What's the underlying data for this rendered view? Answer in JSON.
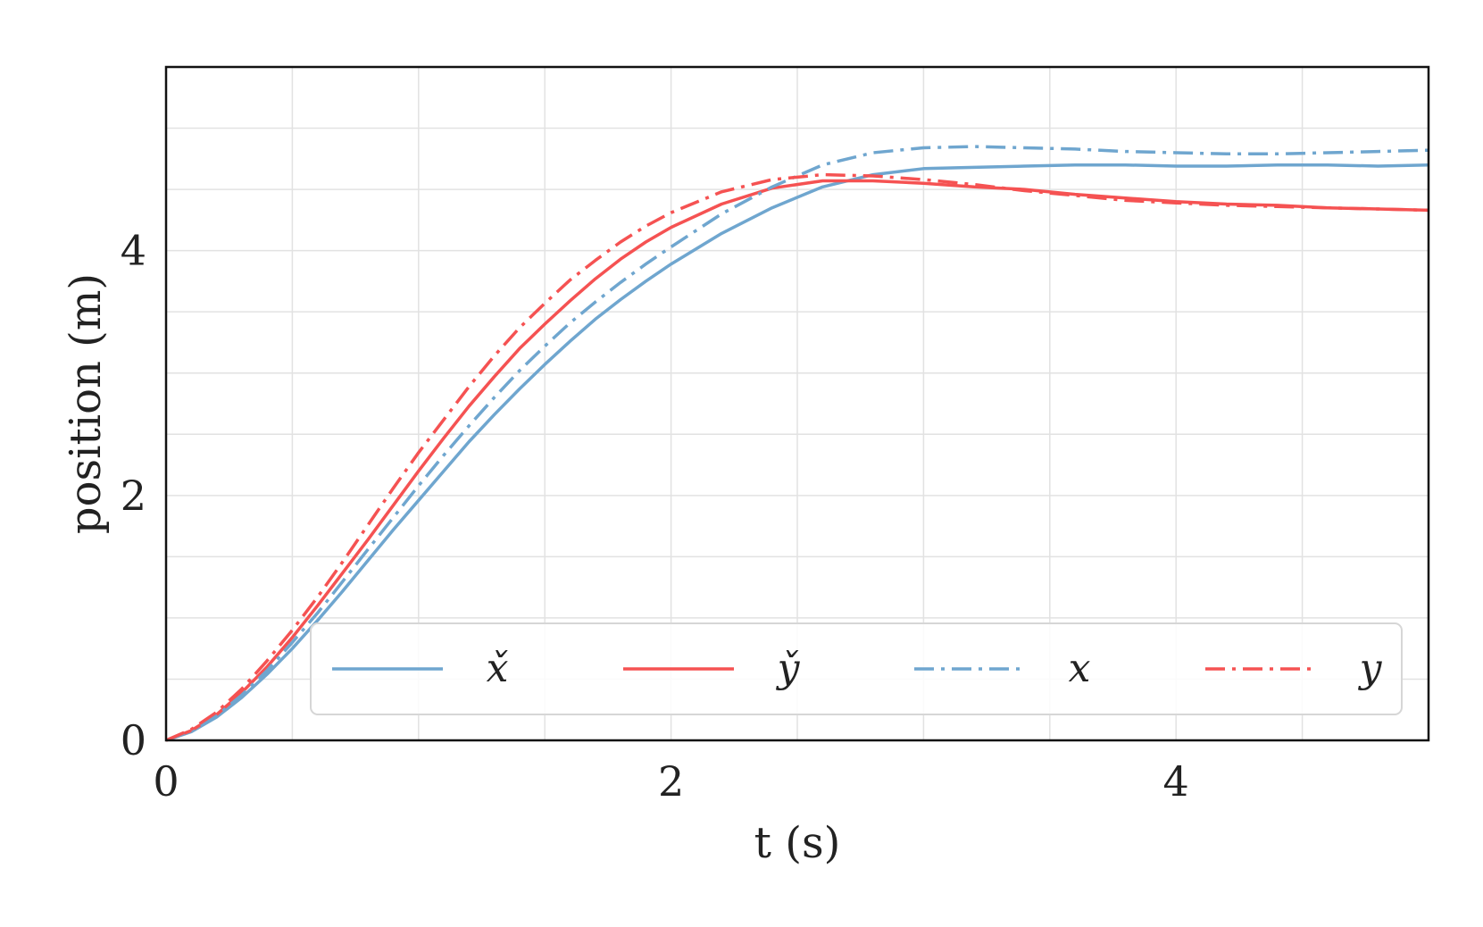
{
  "chart_data": {
    "type": "line",
    "xlabel": "t (s)",
    "ylabel": "position (m)",
    "xlim": [
      0,
      5
    ],
    "ylim": [
      0,
      5.5
    ],
    "xticks": [
      0,
      2,
      4
    ],
    "yticks": [
      0,
      2,
      4
    ],
    "x_minor_grid": [
      0.5,
      1,
      1.5,
      2,
      2.5,
      3,
      3.5,
      4,
      4.5
    ],
    "y_minor_grid": [
      0.5,
      1,
      1.5,
      2,
      2.5,
      3,
      3.5,
      4,
      4.5,
      5
    ],
    "grid": true,
    "legend": {
      "placement": "bottom-right",
      "columns": 4
    },
    "colors": {
      "blue": "#6fa6cf",
      "red": "#f55252"
    },
    "series": [
      {
        "name": "x̌",
        "color": "#6fa6cf",
        "dash": "solid",
        "x": [
          0,
          0.1,
          0.2,
          0.3,
          0.4,
          0.5,
          0.6,
          0.7,
          0.8,
          0.9,
          1.0,
          1.1,
          1.2,
          1.3,
          1.4,
          1.5,
          1.6,
          1.7,
          1.8,
          1.9,
          2.0,
          2.2,
          2.4,
          2.6,
          2.8,
          3.0,
          3.2,
          3.4,
          3.6,
          3.8,
          4.0,
          4.2,
          4.4,
          4.6,
          4.8,
          5.0
        ],
        "y": [
          0,
          0.07,
          0.19,
          0.35,
          0.54,
          0.75,
          0.98,
          1.22,
          1.47,
          1.72,
          1.96,
          2.2,
          2.44,
          2.66,
          2.87,
          3.07,
          3.26,
          3.44,
          3.6,
          3.75,
          3.89,
          4.14,
          4.35,
          4.52,
          4.62,
          4.67,
          4.68,
          4.69,
          4.7,
          4.7,
          4.69,
          4.69,
          4.7,
          4.7,
          4.69,
          4.7
        ]
      },
      {
        "name": "y̌",
        "color": "#f55252",
        "dash": "solid",
        "x": [
          0,
          0.1,
          0.2,
          0.3,
          0.4,
          0.5,
          0.6,
          0.7,
          0.8,
          0.9,
          1.0,
          1.1,
          1.2,
          1.3,
          1.4,
          1.5,
          1.6,
          1.7,
          1.8,
          1.9,
          2.0,
          2.2,
          2.4,
          2.6,
          2.8,
          3.0,
          3.2,
          3.4,
          3.6,
          3.8,
          4.0,
          4.2,
          4.4,
          4.6,
          4.8,
          5.0
        ],
        "y": [
          0,
          0.08,
          0.21,
          0.39,
          0.6,
          0.84,
          1.1,
          1.37,
          1.64,
          1.92,
          2.2,
          2.47,
          2.73,
          2.97,
          3.2,
          3.4,
          3.59,
          3.77,
          3.93,
          4.07,
          4.19,
          4.38,
          4.51,
          4.57,
          4.57,
          4.55,
          4.52,
          4.5,
          4.46,
          4.43,
          4.4,
          4.38,
          4.37,
          4.35,
          4.34,
          4.33
        ]
      },
      {
        "name": "x",
        "color": "#6fa6cf",
        "dash": "dashdot",
        "x": [
          0,
          0.1,
          0.2,
          0.3,
          0.4,
          0.5,
          0.6,
          0.7,
          0.8,
          0.9,
          1.0,
          1.1,
          1.2,
          1.3,
          1.4,
          1.5,
          1.6,
          1.7,
          1.8,
          1.9,
          2.0,
          2.2,
          2.4,
          2.6,
          2.8,
          3.0,
          3.2,
          3.4,
          3.6,
          3.8,
          4.0,
          4.2,
          4.4,
          4.6,
          4.8,
          5.0
        ],
        "y": [
          0,
          0.08,
          0.2,
          0.37,
          0.57,
          0.8,
          1.04,
          1.3,
          1.56,
          1.82,
          2.08,
          2.33,
          2.57,
          2.8,
          3.02,
          3.22,
          3.41,
          3.58,
          3.74,
          3.89,
          4.03,
          4.3,
          4.52,
          4.7,
          4.8,
          4.84,
          4.85,
          4.84,
          4.83,
          4.81,
          4.8,
          4.79,
          4.79,
          4.8,
          4.81,
          4.82
        ]
      },
      {
        "name": "y",
        "color": "#f55252",
        "dash": "dashdot",
        "x": [
          0,
          0.1,
          0.2,
          0.3,
          0.4,
          0.5,
          0.6,
          0.7,
          0.8,
          0.9,
          1.0,
          1.1,
          1.2,
          1.3,
          1.4,
          1.5,
          1.6,
          1.7,
          1.8,
          1.9,
          2.0,
          2.2,
          2.4,
          2.6,
          2.8,
          3.0,
          3.2,
          3.4,
          3.6,
          3.8,
          4.0,
          4.2,
          4.4,
          4.6,
          4.8,
          5.0
        ],
        "y": [
          0,
          0.09,
          0.23,
          0.42,
          0.65,
          0.9,
          1.17,
          1.46,
          1.76,
          2.06,
          2.35,
          2.62,
          2.89,
          3.14,
          3.37,
          3.57,
          3.76,
          3.92,
          4.07,
          4.2,
          4.31,
          4.48,
          4.58,
          4.62,
          4.61,
          4.58,
          4.54,
          4.49,
          4.45,
          4.41,
          4.39,
          4.37,
          4.36,
          4.35,
          4.34,
          4.33
        ]
      }
    ]
  }
}
